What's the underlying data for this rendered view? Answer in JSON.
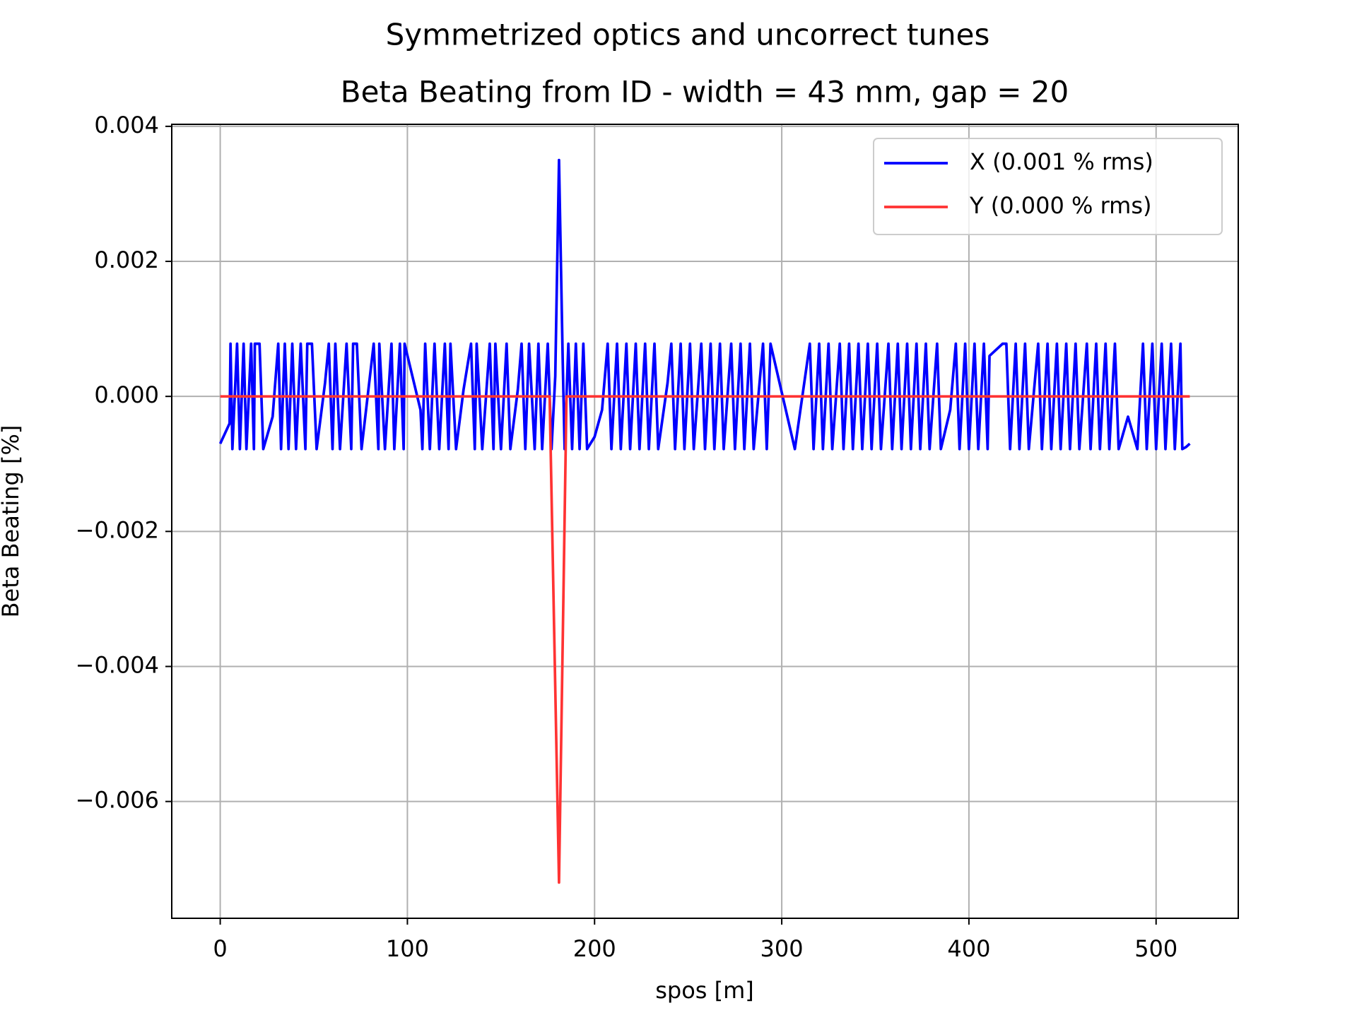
{
  "chart_data": {
    "type": "line",
    "title": "Symmetrized optics and uncorrect tunes",
    "subtitle": "Beta Beating from ID - width = 43 mm, gap = 20",
    "x_label": "spos [m]",
    "y_label": "Beta Beating [%]",
    "xlim": [
      -25.9,
      543.9
    ],
    "ylim": [
      -0.00773,
      0.00403
    ],
    "xticks": [
      0,
      100,
      200,
      300,
      400,
      500
    ],
    "yticks": [
      {
        "value": -0.006,
        "label": "−0.006"
      },
      {
        "value": -0.004,
        "label": "−0.004"
      },
      {
        "value": -0.002,
        "label": "−0.002"
      },
      {
        "value": 0,
        "label": "0.000"
      },
      {
        "value": 0.002,
        "label": "0.002"
      },
      {
        "value": 0.004,
        "label": "0.004"
      }
    ],
    "grid": true,
    "legend": "upper right",
    "series": [
      {
        "name": "X (0.001 % rms)",
        "color": "#0000ff",
        "x": [
          0,
          5,
          5.5,
          6.5,
          9,
          10.5,
          12.5,
          14,
          16.5,
          18,
          18.5,
          21,
          23,
          28,
          31,
          32.5,
          34.5,
          36.5,
          38.5,
          40.5,
          43,
          45.5,
          46.5,
          49,
          51.5,
          56,
          58,
          60,
          61.5,
          64,
          67.5,
          70,
          71,
          73,
          75.5,
          80,
          82,
          84.5,
          85,
          88,
          91.5,
          93,
          96,
          98,
          98.5,
          107,
          108,
          109.5,
          112,
          114.5,
          117,
          120,
          122,
          123,
          126,
          130,
          134,
          136,
          137,
          140,
          144,
          146,
          147,
          150,
          153,
          155,
          159,
          161,
          163,
          165,
          168,
          170,
          172,
          175,
          177,
          179,
          181,
          183,
          184,
          186,
          188,
          190,
          192,
          194,
          196,
          200,
          204,
          207,
          209,
          212,
          214,
          217,
          219,
          222,
          224,
          227,
          229,
          232,
          234,
          239,
          241,
          243,
          246,
          248,
          251,
          253,
          257,
          259,
          262,
          264,
          267,
          269,
          273,
          275,
          278,
          280,
          283,
          285,
          290,
          292,
          294,
          307,
          315,
          317,
          320,
          322,
          325,
          327,
          331,
          333,
          336,
          338,
          341,
          343,
          346,
          348,
          351,
          353,
          357,
          359,
          362,
          364,
          367,
          369,
          372,
          374,
          377,
          379,
          383,
          385,
          390,
          393,
          395,
          398,
          400,
          403,
          405,
          408,
          410,
          411,
          418,
          420,
          422,
          425,
          427,
          430,
          432,
          437,
          439,
          442,
          444,
          447,
          449,
          452,
          454,
          457,
          459,
          463,
          465,
          468,
          470,
          473,
          475,
          478,
          480,
          485,
          490,
          493,
          495,
          498,
          500,
          503,
          505,
          508,
          510,
          513,
          514,
          516,
          518
        ],
        "values": [
          -0.0007,
          -0.0004,
          0.00078,
          -0.00078,
          0.00078,
          -0.00078,
          0.00078,
          -0.00078,
          0.00078,
          -0.00078,
          0.00078,
          0.00078,
          -0.00078,
          -0.0003,
          0.00078,
          -0.00078,
          0.00078,
          -0.00078,
          0.00078,
          -0.00078,
          0.00078,
          -0.00078,
          0.00078,
          0.00078,
          -0.00078,
          0.0002,
          0.00078,
          -0.00078,
          0.00078,
          -0.00078,
          0.00078,
          -0.00078,
          0.00078,
          0.00078,
          -0.00078,
          0.0003,
          0.00078,
          -0.00078,
          0.00078,
          -0.00078,
          0.00078,
          -0.00078,
          0.00078,
          -0.00078,
          0.00078,
          -0.0002,
          -0.00078,
          0.00078,
          -0.00078,
          0.00078,
          -0.00078,
          0.00078,
          -0.00078,
          0.00078,
          -0.00078,
          0.0001,
          0.00078,
          -0.00078,
          0.00078,
          -0.00078,
          0.00078,
          -0.00078,
          0.00078,
          -0.00078,
          0.00078,
          -0.00078,
          0.0001,
          0.00078,
          -0.00078,
          0.00078,
          -0.00078,
          0.00078,
          -0.00078,
          0.00078,
          -0.00078,
          0.0003,
          0.0035,
          0.0005,
          -0.00078,
          0.00078,
          -0.00078,
          0.00078,
          -0.00078,
          0.00078,
          -0.00078,
          -0.0006,
          -0.0002,
          0.00078,
          -0.00078,
          0.00078,
          -0.00078,
          0.00078,
          -0.00078,
          0.00078,
          -0.00078,
          0.00078,
          -0.00078,
          0.00078,
          -0.00078,
          0.0002,
          0.00078,
          -0.00078,
          0.00078,
          -0.00078,
          0.00078,
          -0.00078,
          0.00078,
          -0.00078,
          0.00078,
          -0.00078,
          0.00078,
          -0.00078,
          0.00078,
          -0.00078,
          0.00078,
          -0.00078,
          0.00078,
          -0.00078,
          0.00078,
          -0.00078,
          0.00078,
          -0.00078,
          0.00078,
          -0.00078,
          0.00078,
          -0.00078,
          0.00078,
          -0.00078,
          0.00078,
          -0.00078,
          0.00078,
          -0.00078,
          0.00078,
          -0.00078,
          0.00078,
          -0.00078,
          0.00078,
          -0.00078,
          0.00078,
          -0.00078,
          0.00078,
          -0.00078,
          0.00078,
          -0.00078,
          0.00078,
          -0.00078,
          0.00078,
          -0.00078,
          0.00078,
          -0.00078,
          -0.0002,
          0.00078,
          -0.00078,
          0.00078,
          -0.00078,
          0.00078,
          -0.00078,
          0.00078,
          -0.00078,
          0.0006,
          0.00078,
          0.00078,
          -0.00078,
          0.00078,
          -0.00078,
          0.00078,
          -0.00078,
          0.00078,
          -0.00078,
          0.00078,
          -0.00078,
          0.00078,
          -0.00078,
          0.00078,
          -0.00078,
          0.00078,
          -0.00078,
          0.00078,
          -0.00078,
          0.00078,
          -0.00078,
          0.00078,
          -0.00078,
          0.00078,
          -0.00078,
          -0.0003,
          -0.00078,
          0.00078,
          -0.00078,
          0.00078,
          -0.00078,
          0.00078,
          -0.00078,
          0.00078,
          -0.00078,
          0.00078,
          -0.00078,
          -0.00075,
          -0.0007
        ]
      },
      {
        "name": "Y (0.000 % rms)",
        "color": "#ff3333",
        "x": [
          0,
          176,
          181,
          185,
          518
        ],
        "values": [
          0,
          0,
          -0.0072,
          0,
          0
        ]
      }
    ]
  }
}
